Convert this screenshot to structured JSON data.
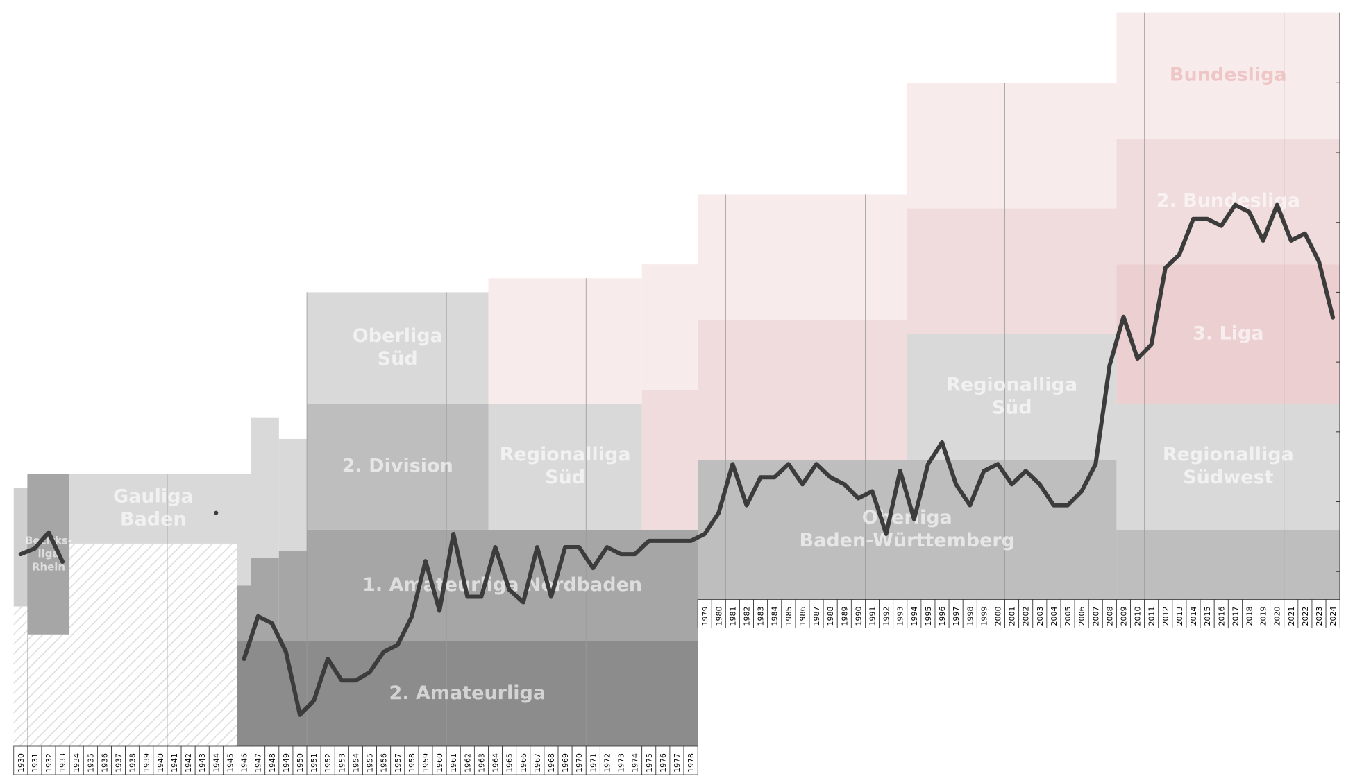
{
  "chart_data": {
    "type": "line",
    "x": [
      1930,
      1931,
      1932,
      1933,
      1934,
      1935,
      1936,
      1937,
      1938,
      1939,
      1940,
      1941,
      1942,
      1943,
      1944,
      1945,
      1946,
      1947,
      1948,
      1949,
      1950,
      1951,
      1952,
      1953,
      1954,
      1955,
      1956,
      1957,
      1958,
      1959,
      1960,
      1961,
      1962,
      1963,
      1964,
      1965,
      1966,
      1967,
      1968,
      1969,
      1970,
      1971,
      1972,
      1973,
      1974,
      1975,
      1976,
      1977,
      1978,
      1979,
      1980,
      1981,
      1982,
      1983,
      1984,
      1985,
      1986,
      1987,
      1988,
      1989,
      1990,
      1991,
      1992,
      1993,
      1994,
      1995,
      1996,
      1997,
      1998,
      1999,
      2000,
      2001,
      2002,
      2003,
      2004,
      2005,
      2006,
      2007,
      2008,
      2009,
      2010,
      2011,
      2012,
      2013,
      2014,
      2015,
      2016,
      2017,
      2018,
      2019,
      2020,
      2021,
      2022,
      2023,
      2024
    ],
    "values": [
      77.5,
      76.7,
      74.4,
      78.6,
      null,
      null,
      null,
      null,
      null,
      null,
      null,
      null,
      null,
      null,
      71.6,
      null,
      92.5,
      86.4,
      87.4,
      91.5,
      100.5,
      98.5,
      92.5,
      95.6,
      95.6,
      94.4,
      91.5,
      90.5,
      86.5,
      78.5,
      85.6,
      74.6,
      83.6,
      83.6,
      76.5,
      82.6,
      84.4,
      76.5,
      83.6,
      76.5,
      76.5,
      79.5,
      76.5,
      77.5,
      77.5,
      75.6,
      75.6,
      75.6,
      75.6,
      74.6,
      71.6,
      64.6,
      70.5,
      66.5,
      66.5,
      64.6,
      67.5,
      64.6,
      66.5,
      67.5,
      69.5,
      68.5,
      74.6,
      65.6,
      72.5,
      64.6,
      61.5,
      67.5,
      70.5,
      65.6,
      64.6,
      67.5,
      65.6,
      67.5,
      70.5,
      70.5,
      68.5,
      64.6,
      50.5,
      43.5,
      49.5,
      47.5,
      36.5,
      34.6,
      29.5,
      29.5,
      30.5,
      27.5,
      28.5,
      32.6,
      27.5,
      32.6,
      31.6,
      35.6,
      43.6
    ],
    "color": "#3c3c3c",
    "ylim": [
      0,
      105
    ],
    "yticks": [
      10,
      20,
      30,
      40,
      50,
      60,
      70,
      80
    ],
    "leagues": [
      {
        "from": 1930,
        "to": 1930,
        "top": 68,
        "bottom": 85,
        "color": "#d0d0d0"
      },
      {
        "from": 1931,
        "to": 1933,
        "top": 66,
        "bottom": 89,
        "color": "#a6a6a6",
        "label": [
          "Bezirks-",
          "liga",
          "Rhein"
        ]
      },
      {
        "from": 1934,
        "to": 1945,
        "top": 66,
        "bottom": 76,
        "color": "#d9d9d9",
        "label": [
          "Gauliga",
          "Baden"
        ]
      },
      {
        "from": 1930,
        "to": 1930,
        "top": 85,
        "bottom": 105,
        "color": "hatch"
      },
      {
        "from": 1931,
        "to": 1933,
        "top": 89,
        "bottom": 105,
        "color": "hatch"
      },
      {
        "from": 1934,
        "to": 1945,
        "top": 76,
        "bottom": 105,
        "color": "hatch"
      },
      {
        "from": 1946,
        "to": 1946,
        "top": 66,
        "bottom": 82,
        "color": "#d9d9d9"
      },
      {
        "from": 1947,
        "to": 1948,
        "top": 58,
        "bottom": 78,
        "color": "#d9d9d9"
      },
      {
        "from": 1949,
        "to": 1950,
        "top": 61,
        "bottom": 77,
        "color": "#d9d9d9"
      },
      {
        "from": 1946,
        "to": 1946,
        "top": 82,
        "bottom": 90,
        "color": "#a6a6a6"
      },
      {
        "from": 1947,
        "to": 1948,
        "top": 78,
        "bottom": 90,
        "color": "#a6a6a6"
      },
      {
        "from": 1949,
        "to": 1950,
        "top": 77,
        "bottom": 90,
        "color": "#a6a6a6"
      },
      {
        "from": 1946,
        "to": 1978,
        "top": 90,
        "bottom": 105,
        "color": "#8c8c8c",
        "label": [
          "2. Amateurliga"
        ]
      },
      {
        "from": 1951,
        "to": 1963,
        "top": 40,
        "bottom": 56,
        "color": "#d9d9d9",
        "label": [
          "Oberliga",
          "Süd"
        ]
      },
      {
        "from": 1951,
        "to": 1963,
        "top": 56,
        "bottom": 74,
        "color": "#bebebe",
        "label": [
          "2. Division"
        ]
      },
      {
        "from": 1951,
        "to": 1978,
        "top": 74,
        "bottom": 90,
        "color": "#a6a6a6",
        "label": [
          "1. Amateurliga Nordbaden"
        ]
      },
      {
        "from": 1964,
        "to": 1974,
        "top": 38,
        "bottom": 56,
        "color": "#f8ebeb"
      },
      {
        "from": 1964,
        "to": 1974,
        "top": 56,
        "bottom": 74,
        "color": "#d9d9d9",
        "label": [
          "Regionalliga",
          "Süd"
        ]
      },
      {
        "from": 1975,
        "to": 1978,
        "top": 36,
        "bottom": 54,
        "color": "#f8ebeb"
      },
      {
        "from": 1975,
        "to": 1978,
        "top": 54,
        "bottom": 74,
        "color": "#f0dcdd"
      },
      {
        "from": 1979,
        "to": 1993,
        "top": 26,
        "bottom": 44,
        "color": "#f8ebeb"
      },
      {
        "from": 1979,
        "to": 1993,
        "top": 44,
        "bottom": 64,
        "color": "#f0dcdd"
      },
      {
        "from": 1979,
        "to": 2008,
        "top": 64,
        "bottom": 84,
        "color": "#bebebe",
        "label": [
          "Oberliga",
          "Baden-Württemberg"
        ]
      },
      {
        "from": 1994,
        "to": 2008,
        "top": 10,
        "bottom": 28,
        "color": "#f8ebeb"
      },
      {
        "from": 1994,
        "to": 2008,
        "top": 28,
        "bottom": 46,
        "color": "#f0dcdd"
      },
      {
        "from": 1994,
        "to": 2008,
        "top": 46,
        "bottom": 64,
        "color": "#d9d9d9",
        "label": [
          "Regionalliga",
          "Süd"
        ]
      },
      {
        "from": 2009,
        "to": 2024,
        "top": 0,
        "bottom": 18,
        "color": "#f8ebeb",
        "label": [
          "Bundesliga"
        ]
      },
      {
        "from": 2009,
        "to": 2024,
        "top": 18,
        "bottom": 36,
        "color": "#f0dcdd",
        "label": [
          "2. Bundesliga"
        ]
      },
      {
        "from": 2009,
        "to": 2024,
        "top": 36,
        "bottom": 56,
        "color": "#ecd0d1",
        "label": [
          "3. Liga"
        ]
      },
      {
        "from": 2009,
        "to": 2024,
        "top": 56,
        "bottom": 74,
        "color": "#d9d9d9",
        "label": [
          "Regionalliga",
          "Südwest"
        ]
      },
      {
        "from": 2009,
        "to": 2024,
        "top": 74,
        "bottom": 84,
        "color": "#bebebe"
      }
    ]
  }
}
